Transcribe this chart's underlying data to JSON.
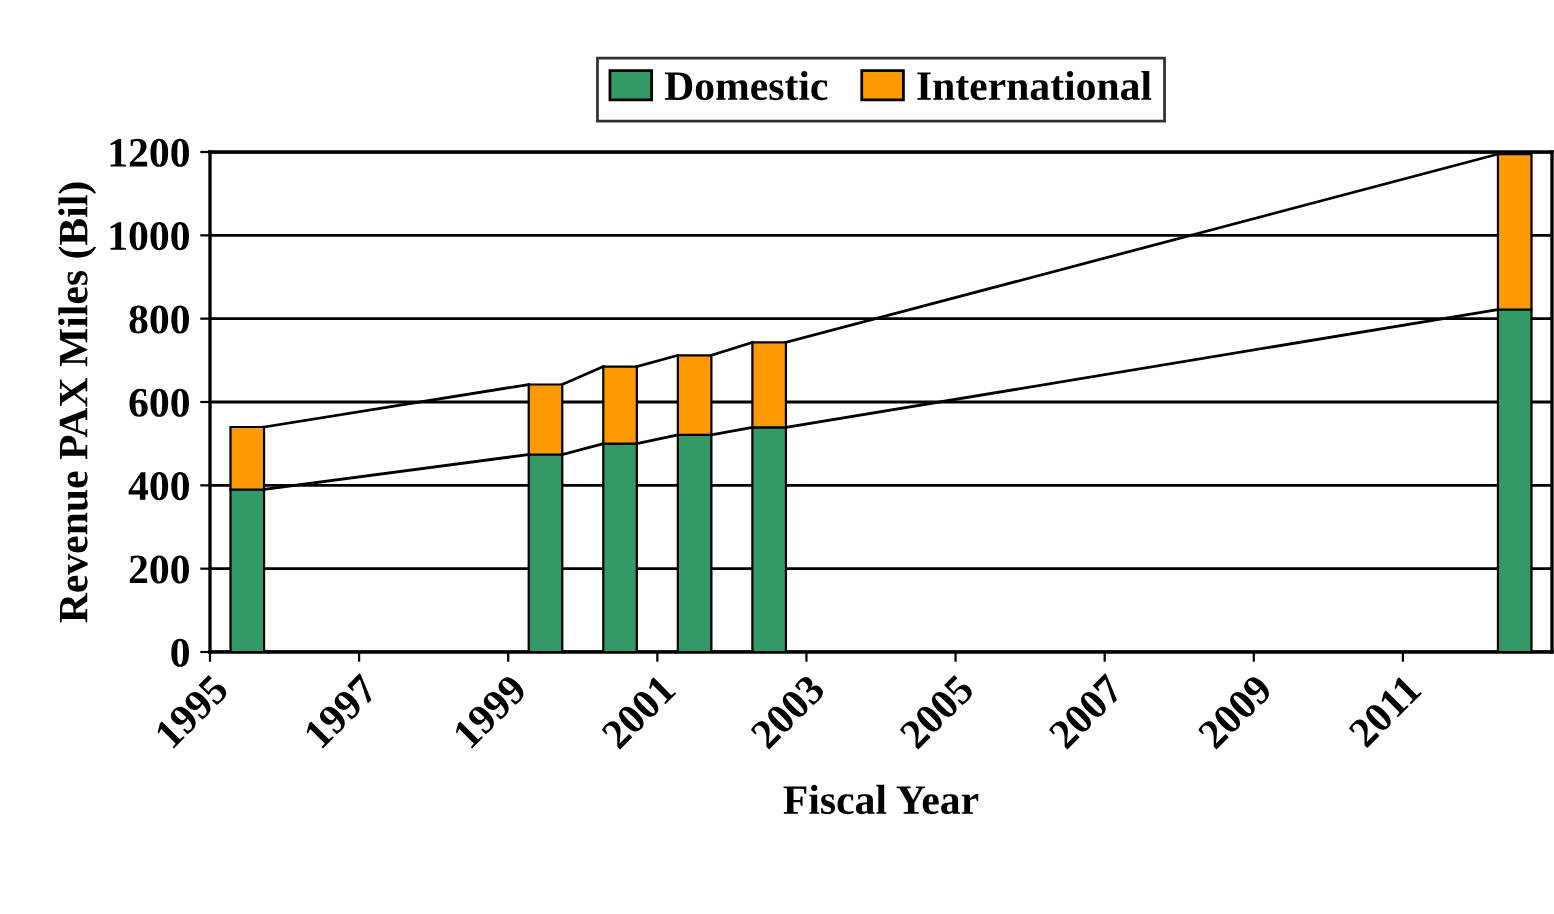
{
  "chart_data": {
    "type": "bar",
    "stacked": true,
    "xlabel": "Fiscal Year",
    "ylabel": "Revenue PAX Miles (Bil)",
    "x": [
      1995,
      1999,
      2000,
      2001,
      2002,
      2012
    ],
    "series": [
      {
        "name": "Domestic",
        "color": "#339966",
        "values": [
          390,
          474,
          500,
          521,
          539,
          822
        ]
      },
      {
        "name": "International",
        "color": "#ff9900",
        "values": [
          150,
          168,
          185,
          191,
          204,
          373
        ]
      }
    ],
    "xlim": [
      1994.5,
      2012.5
    ],
    "xticks": [
      {
        "value": 1994.5,
        "label": "1995"
      },
      {
        "value": 1996.5,
        "label": "1997"
      },
      {
        "value": 1998.5,
        "label": "1999"
      },
      {
        "value": 2000.5,
        "label": "2001"
      },
      {
        "value": 2002.5,
        "label": "2003"
      },
      {
        "value": 2004.5,
        "label": "2005"
      },
      {
        "value": 2006.5,
        "label": "2007"
      },
      {
        "value": 2008.5,
        "label": "2009"
      },
      {
        "value": 2010.5,
        "label": "2011"
      }
    ],
    "ylim": [
      0,
      1200
    ],
    "yticks": [
      0,
      200,
      400,
      600,
      800,
      1000,
      1200
    ],
    "grid": "y",
    "legend": "top"
  }
}
